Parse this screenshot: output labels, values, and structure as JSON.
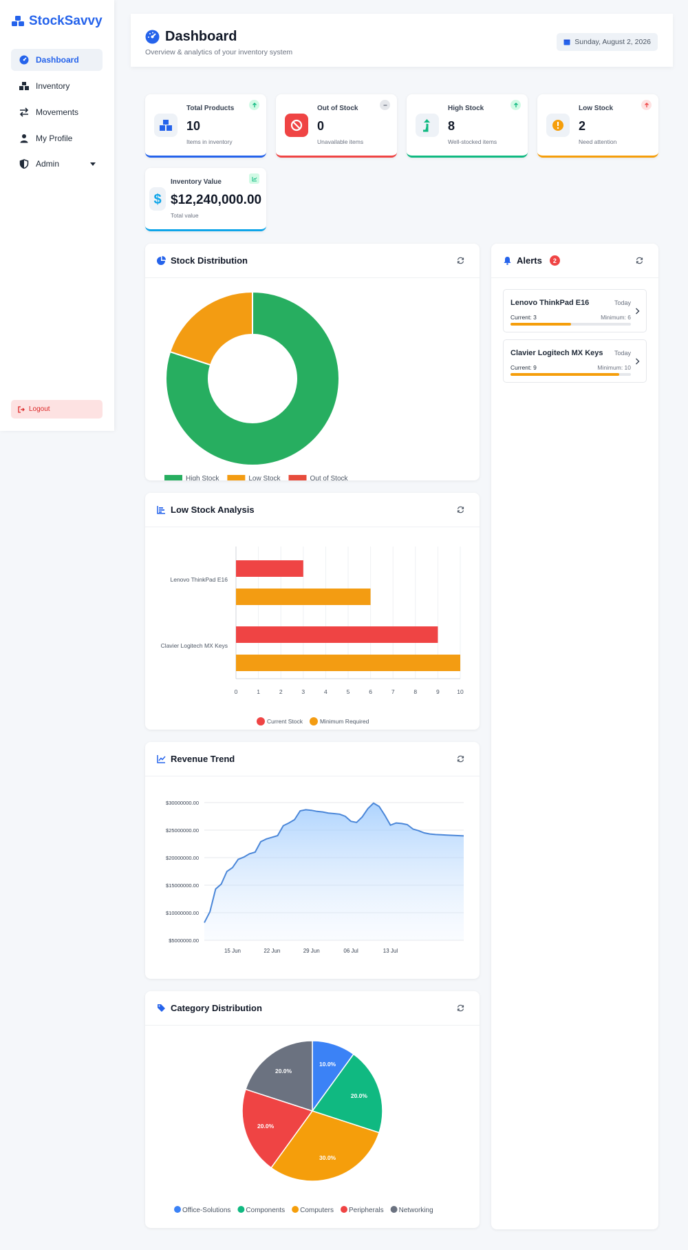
{
  "brand": {
    "name": "StockSavvy"
  },
  "sidebar": {
    "items": [
      {
        "label": "Dashboard",
        "icon": "gauge-icon"
      },
      {
        "label": "Inventory",
        "icon": "boxes-icon"
      },
      {
        "label": "Movements",
        "icon": "arrows-exchange-icon"
      },
      {
        "label": "My Profile",
        "icon": "user-icon"
      },
      {
        "label": "Admin",
        "icon": "shield-icon"
      }
    ],
    "logout": "Logout"
  },
  "header": {
    "title": "Dashboard",
    "subtitle": "Overview & analytics of your inventory system",
    "date": "Sunday, August 2, 2026"
  },
  "stats": [
    {
      "label": "Total Products",
      "value": "10",
      "sub": "Items in inventory",
      "color": "#2563eb"
    },
    {
      "label": "Out of Stock",
      "value": "0",
      "sub": "Unavailable items",
      "color": "#ef4444"
    },
    {
      "label": "High Stock",
      "value": "8",
      "sub": "Well-stocked items",
      "color": "#10b981"
    },
    {
      "label": "Low Stock",
      "value": "2",
      "sub": "Need attention",
      "color": "#f59e0b"
    },
    {
      "label": "Inventory Value",
      "value": "$12,240,000.00",
      "sub": "Total value",
      "color": "#0ea5e9"
    }
  ],
  "panels": {
    "stock_distribution": "Stock Distribution",
    "low_stock_analysis": "Low Stock Analysis",
    "revenue_trend": "Revenue Trend",
    "category_distribution": "Category Distribution",
    "alerts": "Alerts",
    "alerts_count": "2"
  },
  "alerts": [
    {
      "name": "Lenovo ThinkPad E16",
      "when": "Today",
      "current": "Current: 3",
      "minimum": "Minimum: 6",
      "ratio": 0.5
    },
    {
      "name": "Clavier Logitech MX Keys",
      "when": "Today",
      "current": "Current: 9",
      "minimum": "Minimum: 10",
      "ratio": 0.9
    }
  ],
  "chart_data": [
    {
      "type": "doughnut",
      "labels": [
        "High Stock",
        "Low Stock",
        "Out of Stock"
      ],
      "values": [
        8,
        2,
        0
      ],
      "colors": [
        "#27ae60",
        "#f39c12",
        "#e74c3c"
      ]
    },
    {
      "type": "bar",
      "orientation": "horizontal",
      "categories": [
        "Lenovo ThinkPad E16",
        "Clavier Logitech MX Keys"
      ],
      "series": [
        {
          "name": "Current Stock",
          "values": [
            3,
            9
          ],
          "color": "#ef4444"
        },
        {
          "name": "Minimum Required",
          "values": [
            6,
            10
          ],
          "color": "#f39c12"
        }
      ],
      "xlim": [
        0,
        10
      ],
      "xticks": [
        "0",
        "1",
        "2",
        "3",
        "4",
        "5",
        "6",
        "7",
        "8",
        "9",
        "10"
      ]
    },
    {
      "type": "area",
      "xticks": [
        "15 Jun",
        "22 Jun",
        "29 Jun",
        "06 Jul",
        "13 Jul"
      ],
      "yticks": [
        "$5000000.00",
        "$10000000.00",
        "$15000000.00",
        "$20000000.00",
        "$25000000.00",
        "$30000000.00"
      ],
      "ylim": [
        5000000,
        30000000
      ],
      "x_days": [
        0,
        1,
        2,
        3,
        4,
        5,
        6,
        7,
        8,
        9,
        10,
        11,
        12,
        13,
        14,
        15,
        16,
        17,
        18,
        19,
        20,
        21,
        22,
        23,
        24,
        25,
        26,
        27,
        28,
        29,
        30,
        31,
        32,
        33,
        34,
        35,
        36,
        37,
        38,
        39,
        40,
        41,
        42,
        43,
        44,
        45,
        46
      ],
      "y": [
        8200000,
        10200000,
        14300000,
        15200000,
        17500000,
        18200000,
        19700000,
        20100000,
        20700000,
        21000000,
        22900000,
        23400000,
        23700000,
        24000000,
        25800000,
        26300000,
        26900000,
        28500000,
        28700000,
        28600000,
        28400000,
        28300000,
        28100000,
        28000000,
        27900000,
        27500000,
        26600000,
        26400000,
        27400000,
        28900000,
        29900000,
        29300000,
        27700000,
        25900000,
        26300000,
        26200000,
        26000000,
        25200000,
        24900000,
        24500000,
        24300000,
        24200000,
        24150000,
        24100000,
        24050000,
        24000000,
        23950000
      ]
    },
    {
      "type": "pie",
      "labels": [
        "Office-Solutions",
        "Components",
        "Computers",
        "Peripherals",
        "Networking"
      ],
      "values": [
        10,
        20,
        30,
        20,
        20
      ],
      "value_labels": [
        "10.0%",
        "20.0%",
        "30.0%",
        "20.0%",
        "20.0%"
      ],
      "colors": [
        "#3b82f6",
        "#10b981",
        "#f59e0b",
        "#ef4444",
        "#6b7280"
      ]
    }
  ]
}
